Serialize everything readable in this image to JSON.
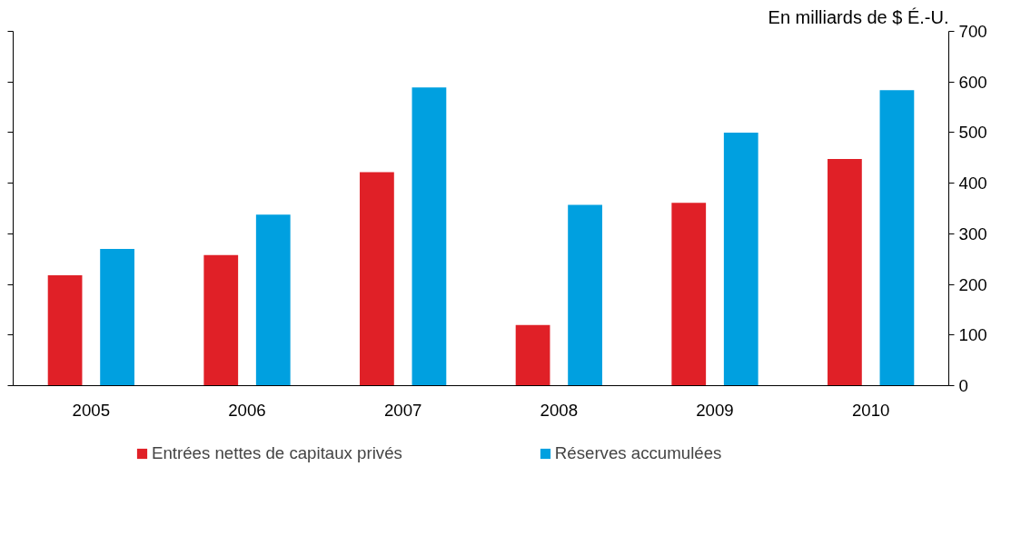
{
  "chart_data": {
    "type": "bar",
    "ylabel": "En milliards de $ É.-U.",
    "categories": [
      "2005",
      "2006",
      "2007",
      "2008",
      "2009",
      "2010"
    ],
    "series": [
      {
        "name": "Entrées nettes de capitaux privés",
        "color": "#e02027",
        "values": [
          218,
          258,
          422,
          120,
          361,
          448
        ]
      },
      {
        "name": "Réserves accumulées",
        "color": "#00a0e0",
        "values": [
          270,
          338,
          589,
          357,
          500,
          584
        ]
      }
    ],
    "ylim": [
      0,
      700
    ],
    "yticks": [
      0,
      100,
      200,
      300,
      400,
      500,
      600,
      700
    ],
    "grid": false,
    "legend": "bottom"
  }
}
